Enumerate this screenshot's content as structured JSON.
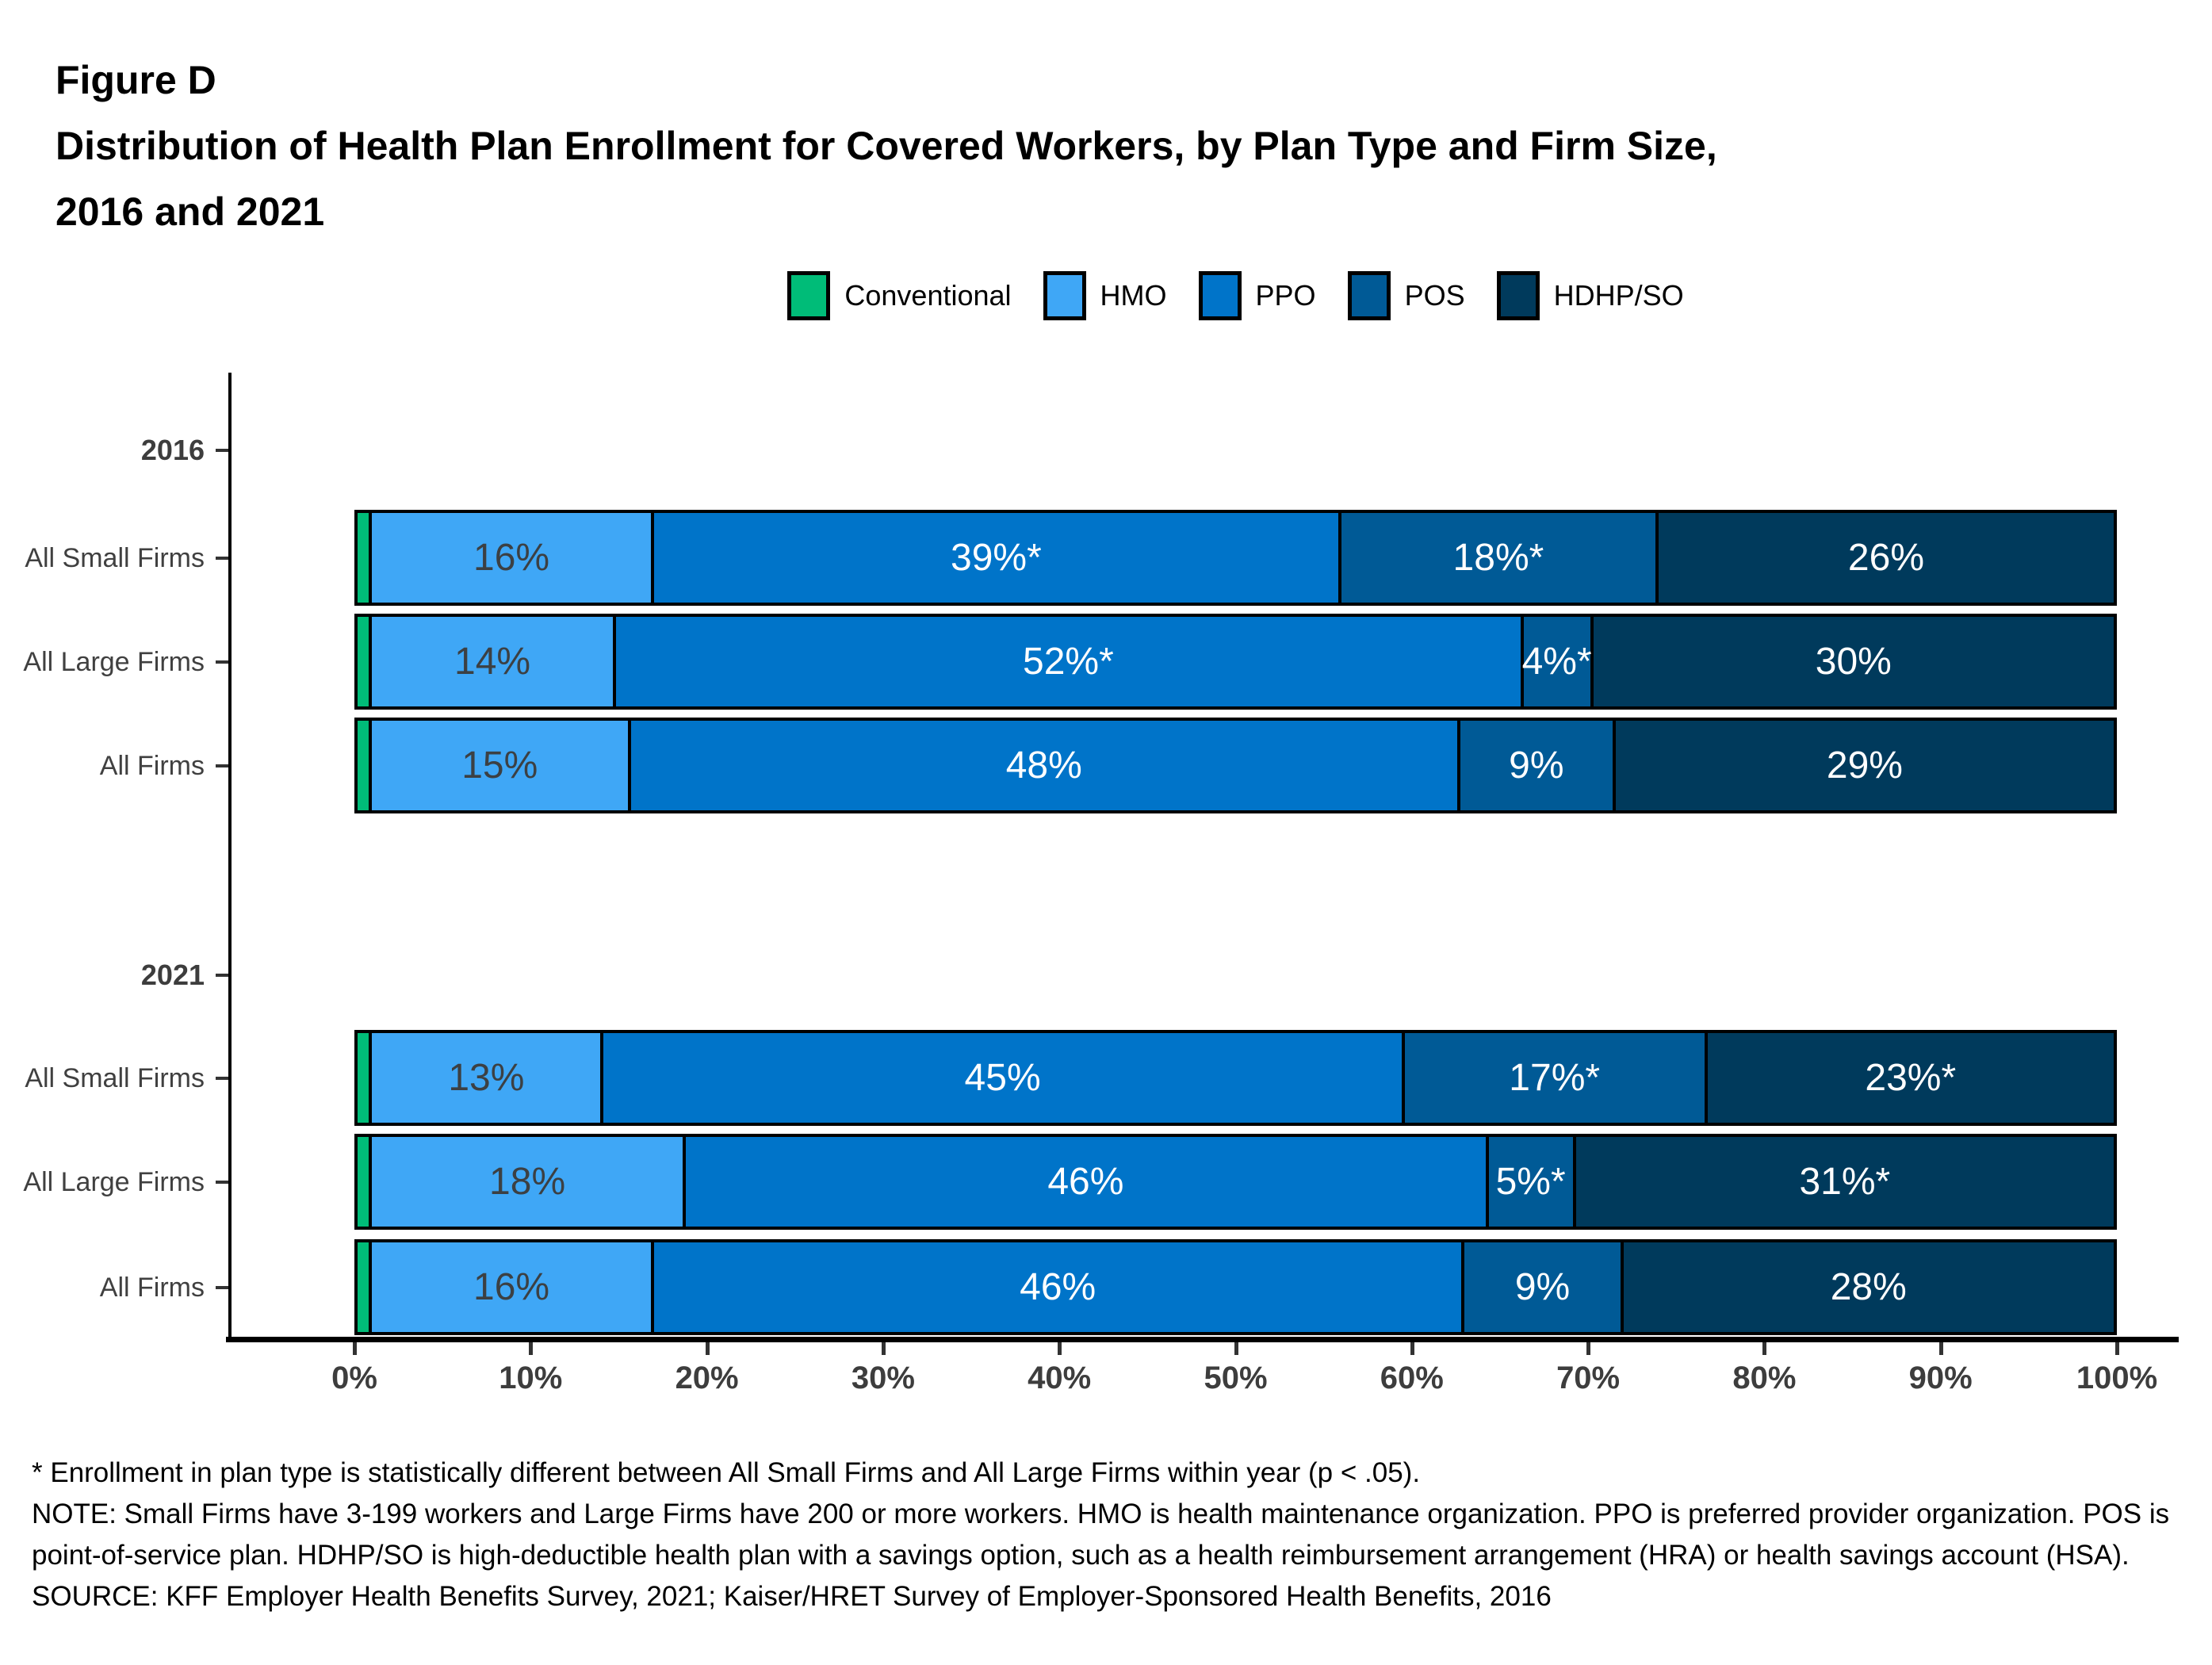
{
  "figure_label": "Figure D",
  "title_line1": "Distribution of Health Plan Enrollment for Covered Workers, by Plan Type and Firm Size,",
  "title_line2": "2016 and 2021",
  "chart_data": {
    "type": "bar",
    "subtype": "horizontal-stacked",
    "xlabel": "",
    "ylabel": "",
    "x_axis": {
      "range": [
        0,
        100
      ],
      "ticks": [
        "0%",
        "10%",
        "20%",
        "30%",
        "40%",
        "50%",
        "60%",
        "70%",
        "80%",
        "90%",
        "100%"
      ],
      "grid": false
    },
    "legend": {
      "position": "top-center",
      "entries": [
        {
          "label": "Conventional",
          "color": "#00BC78"
        },
        {
          "label": "HMO",
          "color": "#3FA7F6"
        },
        {
          "label": "PPO",
          "color": "#0074C9"
        },
        {
          "label": "POS",
          "color": "#005A96"
        },
        {
          "label": "HDHP/SO",
          "color": "#003A5C"
        }
      ]
    },
    "series_names": [
      "Conventional",
      "HMO",
      "PPO",
      "POS",
      "HDHP/SO"
    ],
    "groups": [
      {
        "year": "2016",
        "rows": [
          {
            "label": "All Small Firms",
            "values": [
              1,
              16,
              39,
              18,
              26
            ],
            "segment_labels": [
              "",
              "16%",
              "39%*",
              "18%*",
              "26%"
            ]
          },
          {
            "label": "All Large Firms",
            "values": [
              1,
              14,
              52,
              4,
              30
            ],
            "segment_labels": [
              "",
              "14%",
              "52%*",
              "4%*",
              "30%"
            ]
          },
          {
            "label": "All Firms",
            "values": [
              1,
              15,
              48,
              9,
              29
            ],
            "segment_labels": [
              "",
              "15%",
              "48%",
              "9%",
              "29%"
            ]
          }
        ]
      },
      {
        "year": "2021",
        "rows": [
          {
            "label": "All Small Firms",
            "values": [
              1,
              13,
              45,
              17,
              23
            ],
            "segment_labels": [
              "",
              "13%",
              "45%",
              "17%*",
              "23%*"
            ]
          },
          {
            "label": "All Large Firms",
            "values": [
              1,
              18,
              46,
              5,
              31
            ],
            "segment_labels": [
              "",
              "18%",
              "46%",
              "5%*",
              "31%*"
            ]
          },
          {
            "label": "All Firms",
            "values": [
              1,
              16,
              46,
              9,
              28
            ],
            "segment_labels": [
              "",
              "16%",
              "46%",
              "9%",
              "28%"
            ]
          }
        ]
      }
    ]
  },
  "footnotes": {
    "asterisk": "* Enrollment in plan type is statistically different between All Small Firms and All Large Firms within year (p < .05).",
    "note": "NOTE: Small Firms have 3-199 workers and Large Firms have 200 or more workers. HMO is health maintenance organization. PPO is preferred provider organization. POS is point-of-service plan. HDHP/SO is high-deductible health plan with a savings option, such as a health reimbursement arrangement (HRA) or health savings account (HSA).",
    "source": "SOURCE: KFF Employer Health Benefits Survey, 2021; Kaiser/HRET Survey of Employer-Sponsored Health Benefits, 2016"
  }
}
